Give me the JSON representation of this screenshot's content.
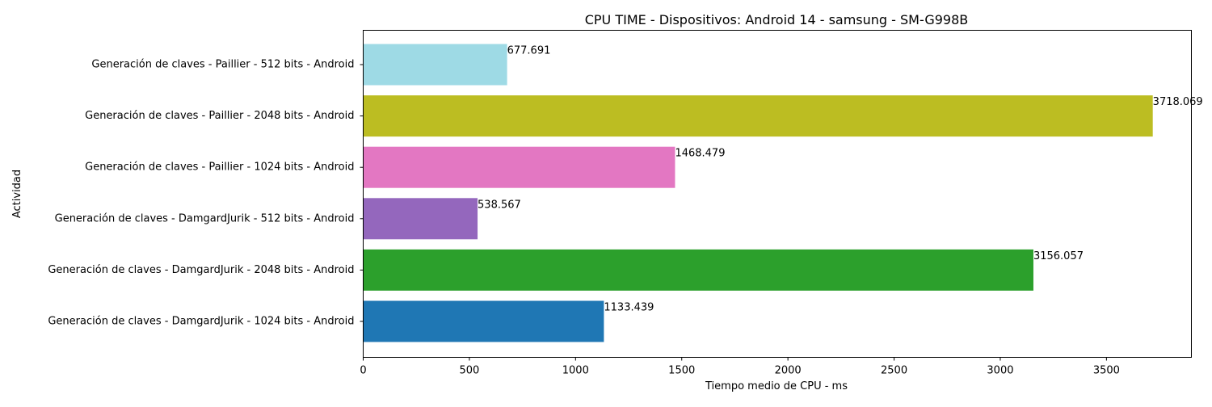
{
  "chart_data": {
    "type": "bar",
    "orientation": "horizontal",
    "title": "CPU TIME - Dispositivos: Android 14 - samsung - SM-G998B",
    "xlabel": "Tiempo medio de CPU - ms",
    "ylabel": "Actividad",
    "xlim": [
      0,
      3900
    ],
    "x_ticks": [
      0,
      500,
      1000,
      1500,
      2000,
      2500,
      3000,
      3500
    ],
    "grid": false,
    "categories": [
      "Generación de claves - DamgardJurik - 1024 bits - Android",
      "Generación de claves - DamgardJurik - 2048 bits - Android",
      "Generación de claves - DamgardJurik - 512 bits - Android",
      "Generación de claves - Paillier - 1024 bits - Android",
      "Generación de claves - Paillier - 2048 bits - Android",
      "Generación de claves - Paillier - 512 bits - Android"
    ],
    "values": [
      1133.439,
      3156.057,
      538.567,
      1468.479,
      3718.069,
      677.691
    ],
    "value_labels": [
      "1133.439",
      "3156.057",
      "538.567",
      "1468.479",
      "3718.069",
      "677.691"
    ],
    "colors": [
      "#1f77b4",
      "#2ca02c",
      "#9467bd",
      "#e377c2",
      "#bcbd22",
      "#9edae5"
    ]
  }
}
